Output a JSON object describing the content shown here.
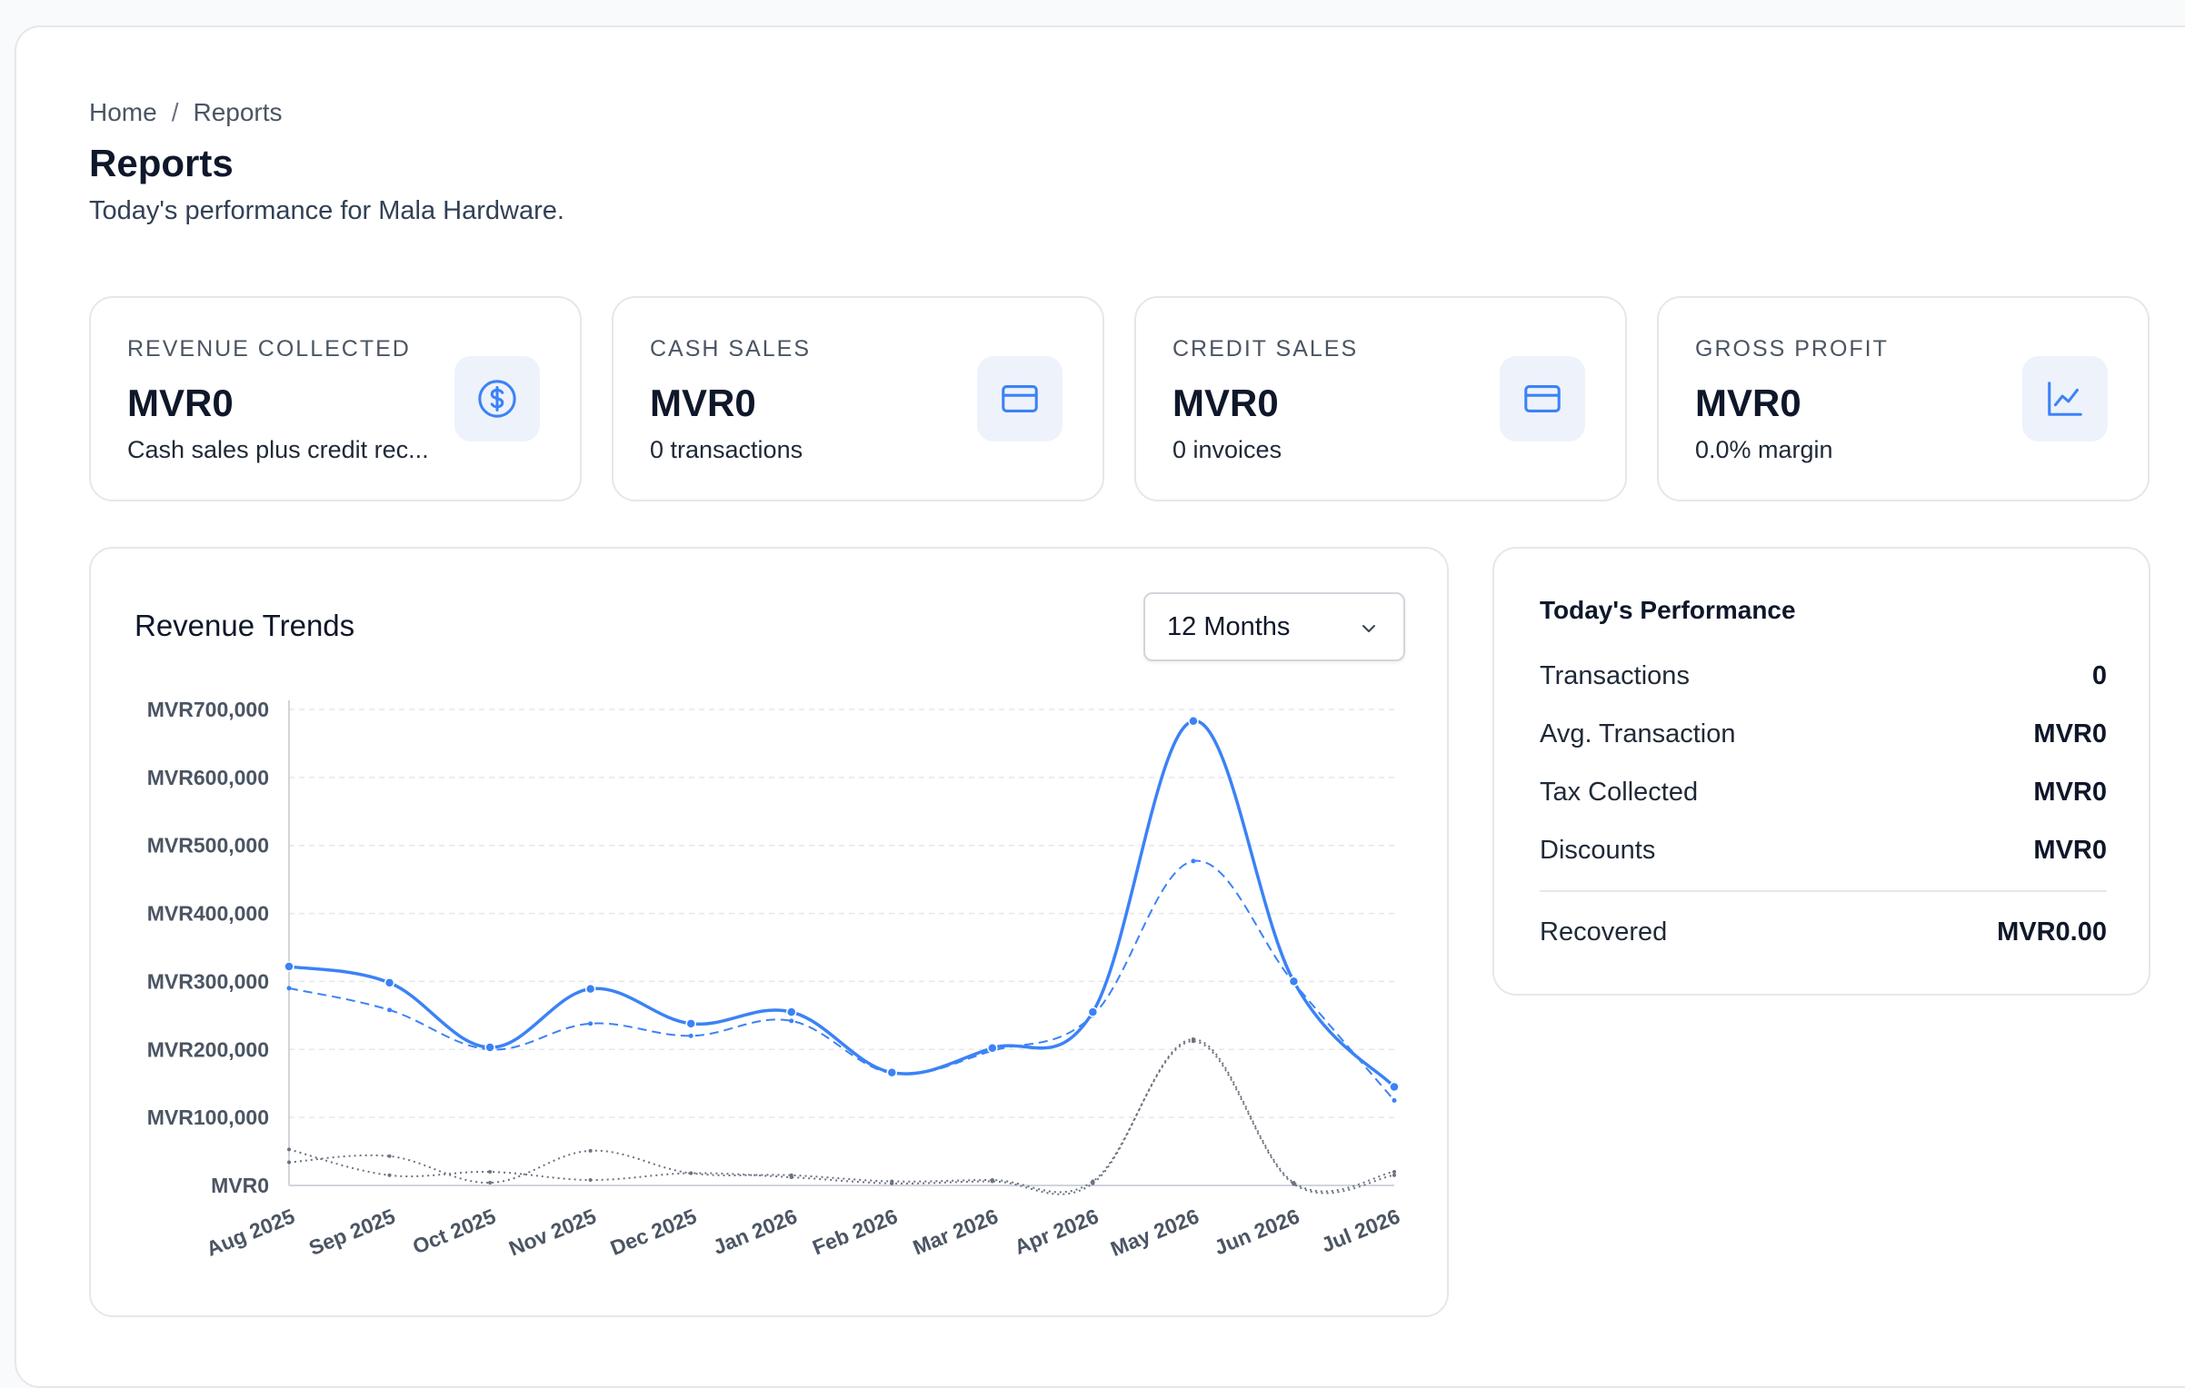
{
  "breadcrumb": {
    "home": "Home",
    "separator": "/",
    "current": "Reports"
  },
  "page": {
    "title": "Reports",
    "subtitle": "Today's performance for Mala Hardware."
  },
  "stats": [
    {
      "label": "REVENUE COLLECTED",
      "value": "MVR0",
      "sub": "Cash sales plus credit rec...",
      "icon": "dollar-circle-icon"
    },
    {
      "label": "CASH SALES",
      "value": "MVR0",
      "sub": "0 transactions",
      "icon": "credit-card-icon"
    },
    {
      "label": "CREDIT SALES",
      "value": "MVR0",
      "sub": "0 invoices",
      "icon": "credit-card-icon"
    },
    {
      "label": "GROSS PROFIT",
      "value": "MVR0",
      "sub": "0.0% margin",
      "icon": "line-chart-icon"
    }
  ],
  "revenue_chart": {
    "title": "Revenue Trends",
    "range_selected": "12 Months"
  },
  "performance": {
    "title": "Today's Performance",
    "rows": [
      {
        "label": "Transactions",
        "value": "0"
      },
      {
        "label": "Avg. Transaction",
        "value": "MVR0"
      },
      {
        "label": "Tax Collected",
        "value": "MVR0"
      },
      {
        "label": "Discounts",
        "value": "MVR0"
      }
    ],
    "total": {
      "label": "Recovered",
      "value": "MVR0.00"
    }
  },
  "colors": {
    "accent": "#3b82f6",
    "muted_series": "#6b7280",
    "icon": "#3b82f6",
    "icon_bg": "#eef2fb"
  },
  "chart_data": {
    "type": "line",
    "categories": [
      "Aug 2025",
      "Sep 2025",
      "Oct 2025",
      "Nov 2025",
      "Dec 2025",
      "Jan 2026",
      "Feb 2026",
      "Mar 2026",
      "Apr 2026",
      "May 2026",
      "Jun 2026",
      "Jul 2026"
    ],
    "ylim": [
      0,
      700000
    ],
    "yticks": [
      0,
      100000,
      200000,
      300000,
      400000,
      500000,
      600000,
      700000
    ],
    "ytick_labels": [
      "MVR0",
      "MVR100,000",
      "MVR200,000",
      "MVR300,000",
      "MVR400,000",
      "MVR500,000",
      "MVR600,000",
      "MVR700,000"
    ],
    "grid": true,
    "series": [
      {
        "style": "solid",
        "color": "#3b82f6",
        "values": [
          322000,
          298000,
          203000,
          289000,
          238000,
          255000,
          166000,
          202000,
          255000,
          683000,
          300000,
          145000
        ]
      },
      {
        "style": "dashed",
        "color": "#3b82f6",
        "values": [
          290000,
          258000,
          200000,
          238000,
          220000,
          242000,
          165000,
          198000,
          250000,
          477000,
          298000,
          125000
        ]
      },
      {
        "style": "dotted",
        "color": "#6b7280",
        "values": [
          53000,
          15000,
          20000,
          8000,
          18000,
          12000,
          3000,
          6000,
          3000,
          215000,
          4000,
          20000
        ]
      },
      {
        "style": "dotted",
        "color": "#6b7280",
        "values": [
          34000,
          43000,
          4000,
          51000,
          18000,
          15000,
          6000,
          8000,
          6000,
          212000,
          2000,
          15000
        ]
      }
    ]
  }
}
